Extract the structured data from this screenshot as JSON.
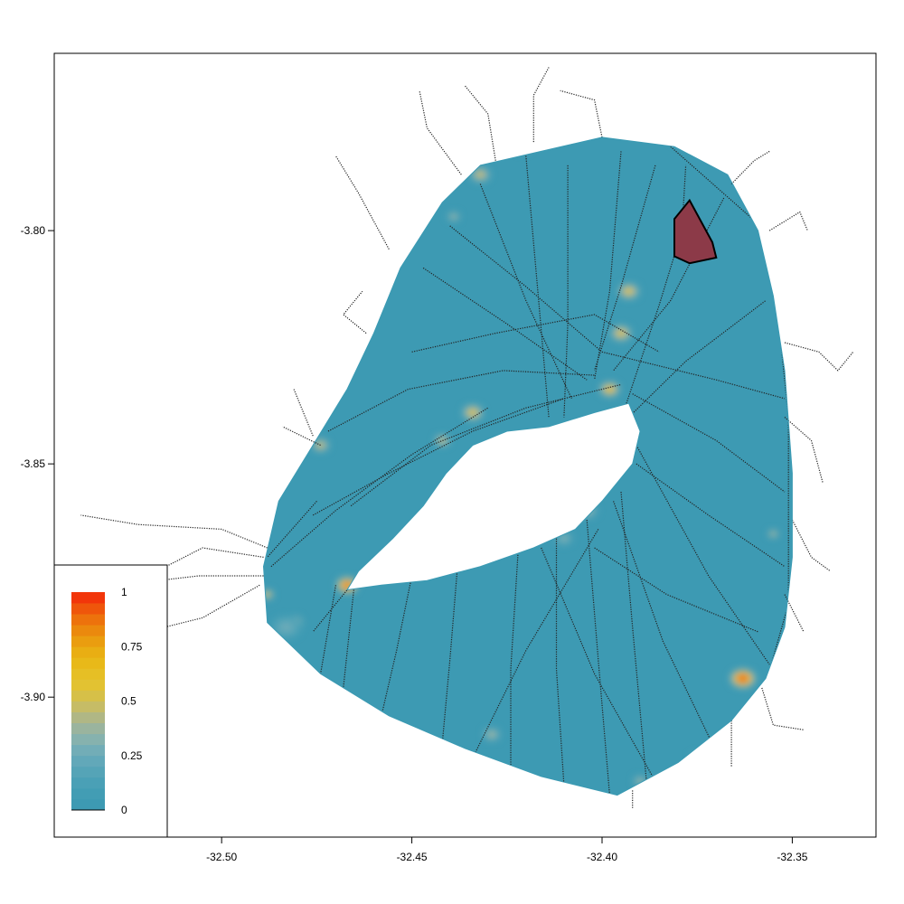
{
  "chart_data": {
    "type": "heatmap",
    "title": "",
    "xlabel": "",
    "ylabel": "",
    "xlim": [
      -32.544,
      -32.328
    ],
    "ylim": [
      -3.93,
      -3.762
    ],
    "x_ticks": [
      {
        "value": -32.5,
        "label": "-32.50"
      },
      {
        "value": -32.45,
        "label": "-32.45"
      },
      {
        "value": -32.4,
        "label": "-32.40"
      },
      {
        "value": -32.35,
        "label": "-32.35"
      }
    ],
    "y_ticks": [
      {
        "value": -3.8,
        "label": "-3.80"
      },
      {
        "value": -3.85,
        "label": "-3.85"
      },
      {
        "value": -3.9,
        "label": "-3.90"
      }
    ],
    "grid": false,
    "background_value": 0.05,
    "island_outline": [
      [
        -32.432,
        -3.786
      ],
      [
        -32.4,
        -3.78
      ],
      [
        -32.381,
        -3.782
      ],
      [
        -32.367,
        -3.788
      ],
      [
        -32.359,
        -3.8
      ],
      [
        -32.355,
        -3.814
      ],
      [
        -32.352,
        -3.83
      ],
      [
        -32.35,
        -3.852
      ],
      [
        -32.35,
        -3.87
      ],
      [
        -32.352,
        -3.885
      ],
      [
        -32.357,
        -3.896
      ],
      [
        -32.366,
        -3.905
      ],
      [
        -32.38,
        -3.914
      ],
      [
        -32.396,
        -3.921
      ],
      [
        -32.416,
        -3.917
      ],
      [
        -32.436,
        -3.911
      ],
      [
        -32.456,
        -3.904
      ],
      [
        -32.474,
        -3.895
      ],
      [
        -32.488,
        -3.884
      ],
      [
        -32.489,
        -3.872
      ],
      [
        -32.485,
        -3.858
      ],
      [
        -32.476,
        -3.846
      ],
      [
        -32.467,
        -3.834
      ],
      [
        -32.46,
        -3.822
      ],
      [
        -32.453,
        -3.808
      ],
      [
        -32.442,
        -3.794
      ]
    ],
    "hole_outline": [
      [
        -32.464,
        -3.873
      ],
      [
        -32.455,
        -3.866
      ],
      [
        -32.447,
        -3.859
      ],
      [
        -32.441,
        -3.852
      ],
      [
        -32.434,
        -3.846
      ],
      [
        -32.425,
        -3.843
      ],
      [
        -32.414,
        -3.842
      ],
      [
        -32.402,
        -3.839
      ],
      [
        -32.393,
        -3.837
      ],
      [
        -32.39,
        -3.843
      ],
      [
        -32.392,
        -3.85
      ],
      [
        -32.4,
        -3.858
      ],
      [
        -32.407,
        -3.864
      ],
      [
        -32.418,
        -3.868
      ],
      [
        -32.432,
        -3.872
      ],
      [
        -32.446,
        -3.875
      ],
      [
        -32.458,
        -3.876
      ],
      [
        -32.467,
        -3.877
      ]
    ],
    "hotspots": [
      {
        "x": -32.363,
        "y": -3.896,
        "value": 1.0,
        "radius": 0.0035
      },
      {
        "x": -32.467,
        "y": -3.876,
        "value": 0.95,
        "radius": 0.003
      },
      {
        "x": -32.481,
        "y": -3.884,
        "value": 0.65,
        "radius": 0.0025
      },
      {
        "x": -32.488,
        "y": -3.878,
        "value": 0.6,
        "radius": 0.0018
      },
      {
        "x": -32.474,
        "y": -3.846,
        "value": 0.55,
        "radius": 0.0025
      },
      {
        "x": -32.434,
        "y": -3.839,
        "value": 0.6,
        "radius": 0.003
      },
      {
        "x": -32.442,
        "y": -3.845,
        "value": 0.55,
        "radius": 0.0022
      },
      {
        "x": -32.393,
        "y": -3.813,
        "value": 0.6,
        "radius": 0.003
      },
      {
        "x": -32.395,
        "y": -3.822,
        "value": 0.6,
        "radius": 0.003
      },
      {
        "x": -32.398,
        "y": -3.834,
        "value": 0.7,
        "radius": 0.0028
      },
      {
        "x": -32.432,
        "y": -3.788,
        "value": 0.55,
        "radius": 0.0028
      },
      {
        "x": -32.439,
        "y": -3.797,
        "value": 0.45,
        "radius": 0.0018
      },
      {
        "x": -32.404,
        "y": -3.86,
        "value": 0.4,
        "radius": 0.003
      },
      {
        "x": -32.41,
        "y": -3.866,
        "value": 0.35,
        "radius": 0.0025
      },
      {
        "x": -32.429,
        "y": -3.908,
        "value": 0.45,
        "radius": 0.0025
      },
      {
        "x": -32.39,
        "y": -3.918,
        "value": 0.45,
        "radius": 0.002
      },
      {
        "x": -32.375,
        "y": -3.913,
        "value": 0.3,
        "radius": 0.002
      },
      {
        "x": -32.355,
        "y": -3.865,
        "value": 0.5,
        "radius": 0.0015
      },
      {
        "x": -32.483,
        "y": -3.885,
        "value": 0.3,
        "radius": 0.004
      },
      {
        "x": -32.421,
        "y": -3.782,
        "value": 0.3,
        "radius": 0.0025
      },
      {
        "x": -32.38,
        "y": -3.78,
        "value": 0.3,
        "radius": 0.0025
      }
    ],
    "highlight_polygon": {
      "fill": "#8c3a48",
      "stroke": "#000000",
      "points": [
        [
          -32.377,
          -3.7935
        ],
        [
          -32.371,
          -3.8025
        ],
        [
          -32.37,
          -3.8058
        ],
        [
          -32.377,
          -3.807
        ],
        [
          -32.381,
          -3.8055
        ],
        [
          -32.381,
          -3.7975
        ]
      ]
    },
    "legend": {
      "placement": "bottom-left",
      "labels": [
        {
          "value": 1,
          "label": "1"
        },
        {
          "value": 0.75,
          "label": "0.75"
        },
        {
          "value": 0.5,
          "label": "0.5"
        },
        {
          "value": 0.25,
          "label": "0.25"
        },
        {
          "value": 0,
          "label": "0"
        }
      ],
      "bins": 20
    },
    "colors": {
      "palette_low": "#3b9ab3",
      "palette_mid": "#cfc563",
      "palette_high": "#f22c0a",
      "palette": [
        "#3d9ab3",
        "#429db4",
        "#4aa0b6",
        "#55a4b7",
        "#62a8b9",
        "#72adb7",
        "#86b2ae",
        "#9ab49e",
        "#b0b785",
        "#c6bc66",
        "#d6c048",
        "#e2c232",
        "#e6bf25",
        "#e8b919",
        "#e9ae13",
        "#ea9d0f",
        "#eb890d",
        "#ed720c",
        "#ef560b",
        "#f2360a"
      ],
      "track": "#222222"
    },
    "tracks": [
      [
        [
          -32.466,
          -3.859
        ],
        [
          -32.445,
          -3.846
        ],
        [
          -32.42,
          -3.838
        ],
        [
          -32.395,
          -3.833
        ]
      ],
      [
        [
          -32.472,
          -3.843
        ],
        [
          -32.451,
          -3.834
        ],
        [
          -32.426,
          -3.83
        ],
        [
          -32.402,
          -3.831
        ]
      ],
      [
        [
          -32.476,
          -3.861
        ],
        [
          -32.456,
          -3.852
        ],
        [
          -32.434,
          -3.843
        ],
        [
          -32.41,
          -3.836
        ]
      ],
      [
        [
          -32.487,
          -3.872
        ],
        [
          -32.47,
          -3.86
        ],
        [
          -32.45,
          -3.848
        ],
        [
          -32.43,
          -3.838
        ]
      ],
      [
        [
          -32.45,
          -3.826
        ],
        [
          -32.428,
          -3.822
        ],
        [
          -32.402,
          -3.818
        ],
        [
          -32.385,
          -3.826
        ]
      ],
      [
        [
          -32.409,
          -3.786
        ],
        [
          -32.409,
          -3.82
        ],
        [
          -32.41,
          -3.84
        ]
      ],
      [
        [
          -32.42,
          -3.784
        ],
        [
          -32.417,
          -3.812
        ],
        [
          -32.414,
          -3.84
        ]
      ],
      [
        [
          -32.395,
          -3.783
        ],
        [
          -32.398,
          -3.813
        ],
        [
          -32.402,
          -3.832
        ]
      ],
      [
        [
          -32.432,
          -3.79
        ],
        [
          -32.42,
          -3.815
        ],
        [
          -32.408,
          -3.836
        ]
      ],
      [
        [
          -32.447,
          -3.808
        ],
        [
          -32.425,
          -3.82
        ],
        [
          -32.404,
          -3.832
        ]
      ],
      [
        [
          -32.386,
          -3.786
        ],
        [
          -32.395,
          -3.812
        ],
        [
          -32.402,
          -3.83
        ]
      ],
      [
        [
          -32.368,
          -3.793
        ],
        [
          -32.382,
          -3.815
        ],
        [
          -32.397,
          -3.83
        ]
      ],
      [
        [
          -32.44,
          -3.799
        ],
        [
          -32.42,
          -3.812
        ],
        [
          -32.4,
          -3.826
        ],
        [
          -32.37,
          -3.832
        ],
        [
          -32.352,
          -3.836
        ]
      ],
      [
        [
          -32.392,
          -3.835
        ],
        [
          -32.37,
          -3.845
        ],
        [
          -32.352,
          -3.856
        ]
      ],
      [
        [
          -32.391,
          -3.85
        ],
        [
          -32.372,
          -3.861
        ],
        [
          -32.352,
          -3.872
        ]
      ],
      [
        [
          -32.393,
          -3.84
        ],
        [
          -32.378,
          -3.828
        ],
        [
          -32.357,
          -3.815
        ]
      ],
      [
        [
          -32.394,
          -3.838
        ],
        [
          -32.385,
          -3.816
        ],
        [
          -32.379,
          -3.8
        ],
        [
          -32.378,
          -3.786
        ]
      ],
      [
        [
          -32.382,
          -3.782
        ],
        [
          -32.357,
          -3.8
        ]
      ],
      [
        [
          -32.391,
          -3.846
        ],
        [
          -32.372,
          -3.874
        ],
        [
          -32.356,
          -3.893
        ]
      ],
      [
        [
          -32.395,
          -3.856
        ],
        [
          -32.392,
          -3.885
        ],
        [
          -32.388,
          -3.921
        ]
      ],
      [
        [
          -32.404,
          -3.862
        ],
        [
          -32.401,
          -3.892
        ],
        [
          -32.398,
          -3.921
        ]
      ],
      [
        [
          -32.412,
          -3.866
        ],
        [
          -32.412,
          -3.894
        ],
        [
          -32.41,
          -3.919
        ]
      ],
      [
        [
          -32.422,
          -3.868
        ],
        [
          -32.424,
          -3.894
        ],
        [
          -32.424,
          -3.916
        ]
      ],
      [
        [
          -32.438,
          -3.872
        ],
        [
          -32.44,
          -3.892
        ],
        [
          -32.442,
          -3.91
        ]
      ],
      [
        [
          -32.45,
          -3.874
        ],
        [
          -32.454,
          -3.89
        ],
        [
          -32.458,
          -3.904
        ]
      ],
      [
        [
          -32.397,
          -3.858
        ],
        [
          -32.384,
          -3.888
        ],
        [
          -32.371,
          -3.91
        ]
      ],
      [
        [
          -32.401,
          -3.864
        ],
        [
          -32.42,
          -3.89
        ],
        [
          -32.434,
          -3.913
        ]
      ],
      [
        [
          -32.402,
          -3.868
        ],
        [
          -32.383,
          -3.878
        ],
        [
          -32.359,
          -3.886
        ]
      ],
      [
        [
          -32.416,
          -3.868
        ],
        [
          -32.402,
          -3.895
        ],
        [
          -32.386,
          -3.918
        ]
      ],
      [
        [
          -32.462,
          -3.872
        ],
        [
          -32.476,
          -3.886
        ]
      ],
      [
        [
          -32.475,
          -3.858
        ],
        [
          -32.488,
          -3.87
        ]
      ],
      [
        [
          -32.465,
          -3.875
        ],
        [
          -32.468,
          -3.898
        ]
      ],
      [
        [
          -32.47,
          -3.876
        ],
        [
          -32.474,
          -3.895
        ]
      ],
      [
        [
          -32.355,
          -3.808
        ],
        [
          -32.351,
          -3.84
        ],
        [
          -32.351,
          -3.88
        ],
        [
          -32.358,
          -3.9
        ]
      ]
    ],
    "outer_tracks": [
      [
        [
          -32.488,
          -3.868
        ],
        [
          -32.5,
          -3.864
        ],
        [
          -32.522,
          -3.863
        ],
        [
          -32.537,
          -3.861
        ]
      ],
      [
        [
          -32.49,
          -3.876
        ],
        [
          -32.505,
          -3.883
        ],
        [
          -32.515,
          -3.885
        ],
        [
          -32.525,
          -3.878
        ]
      ],
      [
        [
          -32.489,
          -3.87
        ],
        [
          -32.505,
          -3.868
        ],
        [
          -32.517,
          -3.873
        ],
        [
          -32.528,
          -3.883
        ]
      ],
      [
        [
          -32.489,
          -3.874
        ],
        [
          -32.506,
          -3.874
        ],
        [
          -32.527,
          -3.876
        ]
      ],
      [
        [
          -32.456,
          -3.804
        ],
        [
          -32.464,
          -3.792
        ],
        [
          -32.47,
          -3.784
        ]
      ],
      [
        [
          -32.437,
          -3.788
        ],
        [
          -32.446,
          -3.778
        ],
        [
          -32.448,
          -3.77
        ]
      ],
      [
        [
          -32.428,
          -3.785
        ],
        [
          -32.43,
          -3.775
        ],
        [
          -32.436,
          -3.769
        ]
      ],
      [
        [
          -32.418,
          -3.781
        ],
        [
          -32.418,
          -3.771
        ],
        [
          -32.414,
          -3.765
        ]
      ],
      [
        [
          -32.4,
          -3.78
        ],
        [
          -32.402,
          -3.772
        ],
        [
          -32.411,
          -3.77
        ]
      ],
      [
        [
          -32.366,
          -3.79
        ],
        [
          -32.36,
          -3.785
        ],
        [
          -32.356,
          -3.783
        ]
      ],
      [
        [
          -32.356,
          -3.8
        ],
        [
          -32.348,
          -3.796
        ],
        [
          -32.346,
          -3.8
        ]
      ],
      [
        [
          -32.352,
          -3.824
        ],
        [
          -32.343,
          -3.826
        ],
        [
          -32.338,
          -3.83
        ],
        [
          -32.334,
          -3.826
        ]
      ],
      [
        [
          -32.352,
          -3.84
        ],
        [
          -32.345,
          -3.845
        ],
        [
          -32.342,
          -3.854
        ]
      ],
      [
        [
          -32.35,
          -3.862
        ],
        [
          -32.345,
          -3.87
        ],
        [
          -32.34,
          -3.873
        ]
      ],
      [
        [
          -32.352,
          -3.878
        ],
        [
          -32.347,
          -3.886
        ]
      ],
      [
        [
          -32.358,
          -3.898
        ],
        [
          -32.355,
          -3.906
        ],
        [
          -32.347,
          -3.907
        ]
      ],
      [
        [
          -32.366,
          -3.905
        ],
        [
          -32.366,
          -3.915
        ]
      ],
      [
        [
          -32.392,
          -3.92
        ],
        [
          -32.392,
          -3.924
        ]
      ],
      [
        [
          -32.474,
          -3.846
        ],
        [
          -32.484,
          -3.842
        ]
      ],
      [
        [
          -32.462,
          -3.822
        ],
        [
          -32.468,
          -3.818
        ],
        [
          -32.463,
          -3.813
        ]
      ],
      [
        [
          -32.476,
          -3.844
        ],
        [
          -32.481,
          -3.834
        ]
      ]
    ]
  }
}
